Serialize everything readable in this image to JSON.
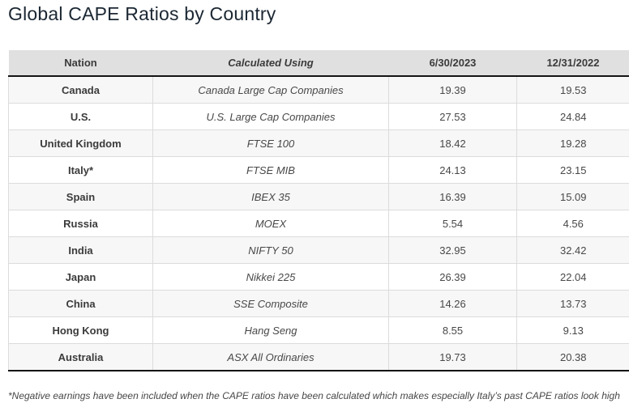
{
  "page": {
    "title": "Global CAPE Ratios by Country",
    "footnote": "*Negative earnings have been included when the CAPE ratios have been calculated which makes especially Italy’s past CAPE ratios look high"
  },
  "table": {
    "columns": [
      "Nation",
      "Calculated Using",
      "6/30/2023",
      "12/31/2022"
    ],
    "rows": [
      {
        "nation": "Canada",
        "calculated_using": "Canada Large Cap Companies",
        "v2023": "19.39",
        "v2022": "19.53"
      },
      {
        "nation": "U.S.",
        "calculated_using": "U.S. Large Cap Companies",
        "v2023": "27.53",
        "v2022": "24.84"
      },
      {
        "nation": "United Kingdom",
        "calculated_using": "FTSE 100",
        "v2023": "18.42",
        "v2022": "19.28"
      },
      {
        "nation": "Italy*",
        "calculated_using": "FTSE MIB",
        "v2023": "24.13",
        "v2022": "23.15"
      },
      {
        "nation": "Spain",
        "calculated_using": "IBEX 35",
        "v2023": "16.39",
        "v2022": "15.09"
      },
      {
        "nation": "Russia",
        "calculated_using": "MOEX",
        "v2023": "5.54",
        "v2022": "4.56"
      },
      {
        "nation": "India",
        "calculated_using": "NIFTY 50",
        "v2023": "32.95",
        "v2022": "32.42"
      },
      {
        "nation": "Japan",
        "calculated_using": "Nikkei 225",
        "v2023": "26.39",
        "v2022": "22.04"
      },
      {
        "nation": "China",
        "calculated_using": "SSE Composite",
        "v2023": "14.26",
        "v2022": "13.73"
      },
      {
        "nation": "Hong Kong",
        "calculated_using": "Hang Seng",
        "v2023": "8.55",
        "v2022": "9.13"
      },
      {
        "nation": "Australia",
        "calculated_using": "ASX All Ordinaries",
        "v2023": "19.73",
        "v2022": "20.38"
      }
    ]
  },
  "chart_data": {
    "type": "table",
    "title": "Global CAPE Ratios by Country",
    "columns": [
      "Nation",
      "Calculated Using",
      "6/30/2023",
      "12/31/2022"
    ],
    "rows": [
      [
        "Canada",
        "Canada Large Cap Companies",
        19.39,
        19.53
      ],
      [
        "U.S.",
        "U.S. Large Cap Companies",
        27.53,
        24.84
      ],
      [
        "United Kingdom",
        "FTSE 100",
        18.42,
        19.28
      ],
      [
        "Italy*",
        "FTSE MIB",
        24.13,
        23.15
      ],
      [
        "Spain",
        "IBEX 35",
        16.39,
        15.09
      ],
      [
        "Russia",
        "MOEX",
        5.54,
        4.56
      ],
      [
        "India",
        "NIFTY 50",
        32.95,
        32.42
      ],
      [
        "Japan",
        "Nikkei 225",
        26.39,
        22.04
      ],
      [
        "China",
        "SSE Composite",
        14.26,
        13.73
      ],
      [
        "Hong Kong",
        "Hang Seng",
        8.55,
        9.13
      ],
      [
        "Australia",
        "ASX All Ordinaries",
        19.73,
        20.38
      ]
    ],
    "footnote": "*Negative earnings have been included when the CAPE ratios have been calculated which makes especially Italy’s past CAPE ratios look high",
    "layout": {
      "zebra_striping": true,
      "header_bold": true,
      "nation_column_bold": true,
      "calculated_using_italic": true
    }
  },
  "colors": {
    "title": "#1b2733",
    "header_bg": "#e0e0e0",
    "row_stripe": "#f7f7f7",
    "cell_border": "#dcdcdc",
    "dark_border": "#141414",
    "body_text": "#444444"
  }
}
